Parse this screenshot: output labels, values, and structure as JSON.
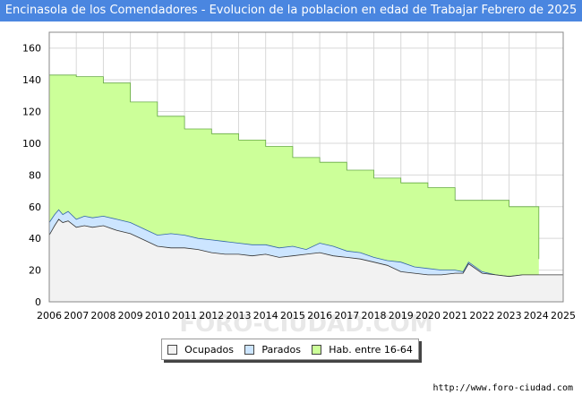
{
  "chart_data": {
    "type": "area",
    "title": "Encinasola de los Comendadores - Evolucion de la poblacion en edad de Trabajar Febrero de 2025",
    "xlabel": "",
    "ylabel": "",
    "xlim": [
      2006,
      2025
    ],
    "ylim": [
      0,
      170
    ],
    "yticks": [
      0,
      20,
      40,
      60,
      80,
      100,
      120,
      140,
      160
    ],
    "xticks": [
      2006,
      2007,
      2008,
      2009,
      2010,
      2011,
      2012,
      2013,
      2014,
      2015,
      2016,
      2017,
      2018,
      2019,
      2020,
      2021,
      2022,
      2023,
      2024,
      2025
    ],
    "grid": true,
    "legend_position": "bottom",
    "series": [
      {
        "name": "Hab. entre 16-64",
        "color": "#ccff99",
        "line": "#66aa44",
        "step": true,
        "x": [
          2006,
          2007,
          2008,
          2009,
          2010,
          2011,
          2012,
          2013,
          2014,
          2015,
          2016,
          2017,
          2018,
          2019,
          2020,
          2021,
          2022,
          2023,
          2024.1
        ],
        "values": [
          143,
          142,
          138,
          126,
          117,
          109,
          106,
          102,
          98,
          91,
          88,
          83,
          78,
          75,
          72,
          64,
          64,
          60,
          27
        ]
      },
      {
        "name": "Parados",
        "color": "#cce5ff",
        "line": "#3366aa",
        "x": [
          2006,
          2006.2,
          2006.35,
          2006.5,
          2006.7,
          2007,
          2007.3,
          2007.6,
          2008,
          2008.5,
          2009,
          2009.5,
          2010,
          2010.5,
          2011,
          2011.5,
          2012,
          2012.5,
          2013,
          2013.5,
          2014,
          2014.5,
          2015,
          2015.5,
          2016,
          2016.5,
          2017,
          2017.5,
          2018,
          2018.5,
          2019,
          2019.5,
          2020,
          2020.5,
          2021,
          2021.3,
          2021.5,
          2022,
          2022.5,
          2023,
          2023.5,
          2024,
          2025
        ],
        "values": [
          50,
          55,
          58,
          55,
          57,
          52,
          54,
          53,
          54,
          52,
          50,
          46,
          42,
          43,
          42,
          40,
          39,
          38,
          37,
          36,
          36,
          34,
          35,
          33,
          37,
          35,
          32,
          31,
          28,
          26,
          25,
          22,
          21,
          20,
          20,
          19,
          25,
          19,
          17,
          16,
          17,
          17,
          17
        ]
      },
      {
        "name": "Ocupados",
        "color": "#f2f2f2",
        "line": "#333333",
        "x": [
          2006,
          2006.2,
          2006.35,
          2006.5,
          2006.7,
          2007,
          2007.3,
          2007.6,
          2008,
          2008.5,
          2009,
          2009.5,
          2010,
          2010.5,
          2011,
          2011.5,
          2012,
          2012.5,
          2013,
          2013.5,
          2014,
          2014.5,
          2015,
          2015.5,
          2016,
          2016.5,
          2017,
          2017.5,
          2018,
          2018.5,
          2019,
          2019.5,
          2020,
          2020.5,
          2021,
          2021.3,
          2021.5,
          2022,
          2022.5,
          2023,
          2023.5,
          2024,
          2025
        ],
        "values": [
          42,
          48,
          52,
          50,
          51,
          47,
          48,
          47,
          48,
          45,
          43,
          39,
          35,
          34,
          34,
          33,
          31,
          30,
          30,
          29,
          30,
          28,
          29,
          30,
          31,
          29,
          28,
          27,
          25,
          23,
          19,
          18,
          17,
          17,
          18,
          18,
          24,
          18,
          17,
          16,
          17,
          17,
          17
        ]
      }
    ]
  },
  "legend": {
    "ocupados": "Ocupados",
    "parados": "Parados",
    "hab": "Hab. entre 16-64"
  },
  "colors": {
    "ocupados": "#f2f2f2",
    "parados": "#cce5ff",
    "hab": "#ccff99"
  },
  "watermark": "FORO-CIUDAD.COM",
  "source": "http://www.foro-ciudad.com"
}
